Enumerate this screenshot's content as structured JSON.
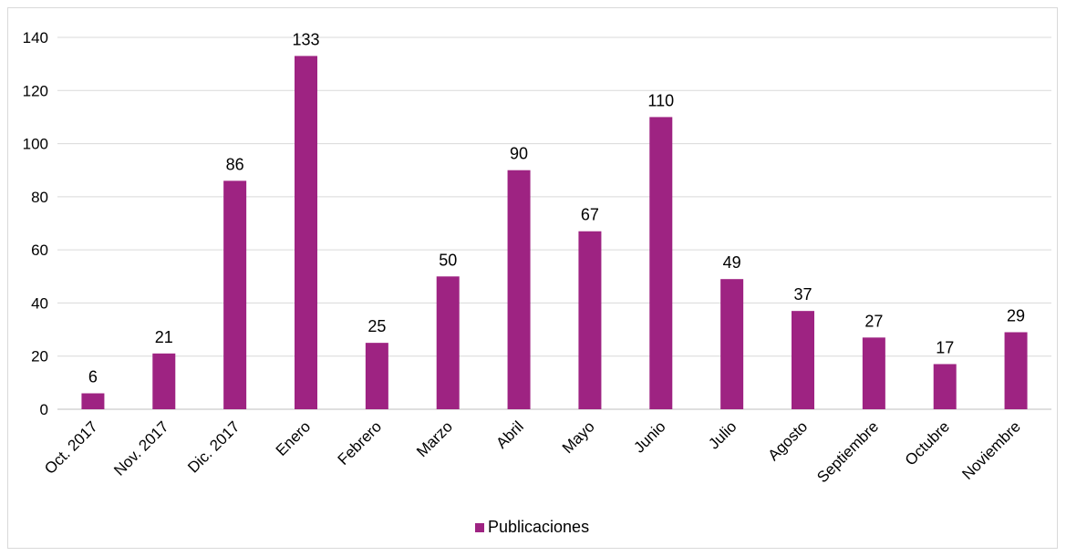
{
  "chart_data": {
    "type": "bar",
    "categories": [
      "Oct. 2017",
      "Nov. 2017",
      "Dic. 2017",
      "Enero",
      "Febrero",
      "Marzo",
      "Abril",
      "Mayo",
      "Junio",
      "Julio",
      "Agosto",
      "Septiembre",
      "Octubre",
      "Noviembre"
    ],
    "series": [
      {
        "name": "Publicaciones",
        "color": "#9e2382",
        "values": [
          6,
          21,
          86,
          133,
          25,
          50,
          90,
          67,
          110,
          49,
          37,
          27,
          17,
          29
        ]
      }
    ],
    "ylim": [
      0,
      140
    ],
    "yticks": [
      0,
      20,
      40,
      60,
      80,
      100,
      120,
      140
    ],
    "grid": true,
    "legend_position": "bottom",
    "data_labels": true
  }
}
